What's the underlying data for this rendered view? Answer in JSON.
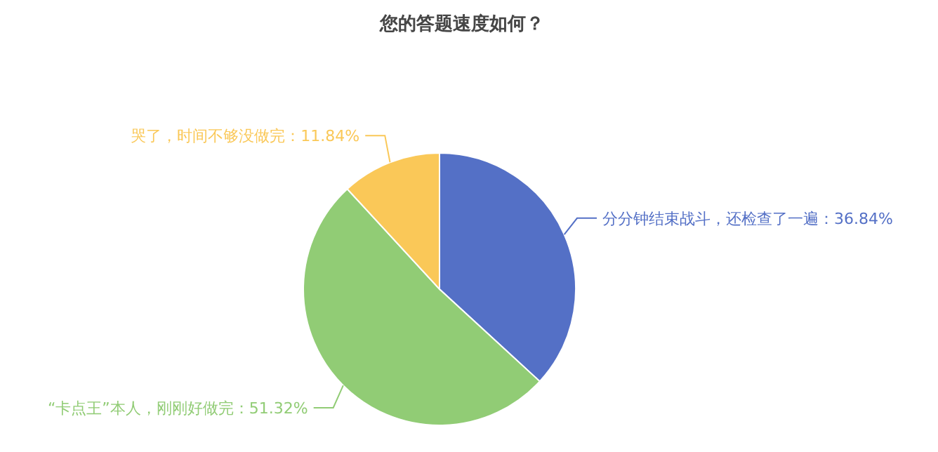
{
  "chart_data": {
    "type": "pie",
    "title": "您的答题速度如何？",
    "categories": [
      "分分钟结束战斗，还检查了一遍",
      "“卡点王”本人，刚刚好做完",
      "哭了，时间不够没做完"
    ],
    "values": [
      36.84,
      51.32,
      11.84
    ],
    "colors": [
      "#5470c6",
      "#91cc75",
      "#fac858"
    ],
    "value_labels": [
      "36.84%",
      "51.32%",
      "11.84%"
    ],
    "legend": false
  }
}
